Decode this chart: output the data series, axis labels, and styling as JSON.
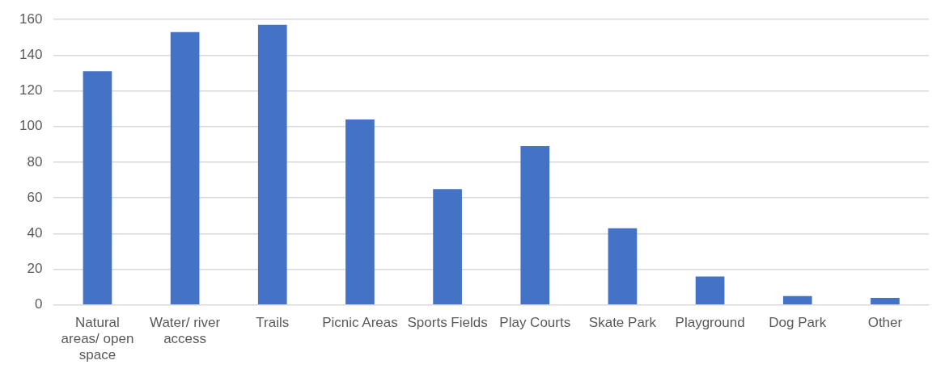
{
  "chart_data": {
    "type": "bar",
    "categories": [
      "Natural areas/ open space",
      "Water/ river access",
      "Trails",
      "Picnic Areas",
      "Sports Fields",
      "Play Courts",
      "Skate Park",
      "Playground",
      "Dog Park",
      "Other"
    ],
    "values": [
      131,
      153,
      157,
      104,
      65,
      89,
      43,
      16,
      5,
      4
    ],
    "color": "#4472c4",
    "ylim": [
      0,
      160
    ],
    "yticks": [
      0,
      20,
      40,
      60,
      80,
      100,
      120,
      140,
      160
    ],
    "grid": "y",
    "legend": false
  }
}
